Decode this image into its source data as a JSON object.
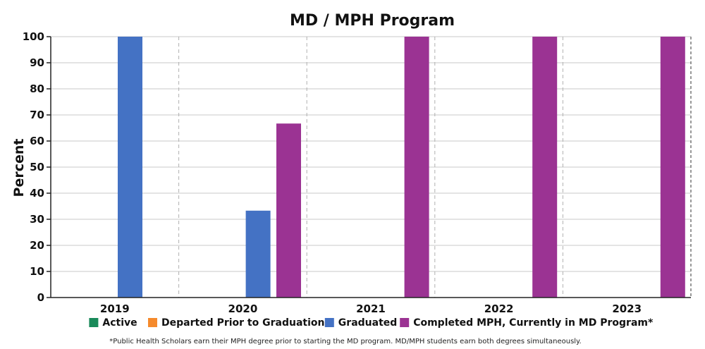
{
  "chart_data": {
    "type": "bar",
    "title": "MD / MPH Program",
    "xlabel": "",
    "ylabel": "Percent",
    "ylim": [
      0,
      100
    ],
    "yticks": [
      0,
      10,
      20,
      30,
      40,
      50,
      60,
      70,
      80,
      90,
      100
    ],
    "categories": [
      "2019",
      "2020",
      "2021",
      "2022",
      "2023"
    ],
    "grid": true,
    "legend_position": "bottom",
    "series": [
      {
        "name": "Active",
        "color": "#1a8a5a",
        "values": [
          0,
          0,
          0,
          0,
          0
        ]
      },
      {
        "name": "Departed Prior to Graduation",
        "color": "#f58a2c",
        "values": [
          0,
          0,
          0,
          0,
          0
        ]
      },
      {
        "name": "Graduated",
        "color": "#4472c4",
        "values": [
          100,
          33.3,
          0,
          0,
          0
        ]
      },
      {
        "name": "Completed MPH, Currently in MD Program*",
        "color": "#9b3393",
        "values": [
          0,
          66.7,
          100,
          100,
          100
        ]
      }
    ],
    "footnote": "*Public Health Scholars earn their MPH degree prior to starting the MD program. MD/MPH students earn both degrees simultaneously."
  }
}
